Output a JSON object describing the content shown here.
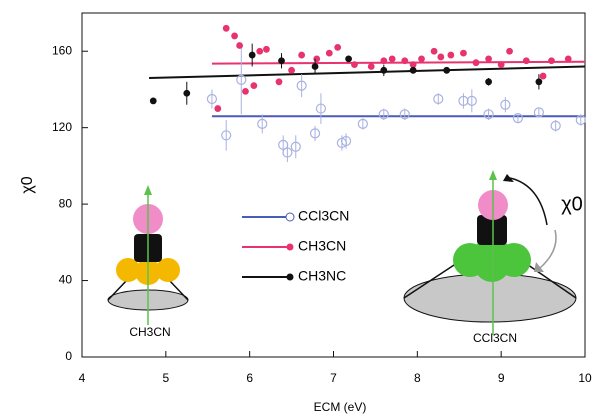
{
  "chart_data": {
    "type": "scatter",
    "xlabel": "ECM (eV)",
    "ylabel": "χ0",
    "xlim": [
      4,
      10
    ],
    "ylim": [
      0,
      180
    ],
    "xticks": [
      4,
      5,
      6,
      7,
      8,
      9,
      10
    ],
    "yticks": [
      0,
      40,
      80,
      120,
      160
    ],
    "series": [
      {
        "name": "CCl3CN",
        "color": "#4a5bb8",
        "marker": "open",
        "x": [
          5.55,
          5.72,
          5.9,
          6.15,
          6.4,
          6.45,
          6.55,
          6.62,
          6.78,
          6.85,
          7.1,
          7.15,
          7.35,
          7.6,
          7.85,
          8.25,
          8.55,
          8.65,
          8.85,
          9.05,
          9.2,
          9.45,
          9.65,
          9.95
        ],
        "values": [
          135,
          116,
          145,
          122,
          111,
          107,
          110,
          142,
          117,
          130,
          112,
          113,
          122,
          127,
          127,
          135,
          134,
          134,
          127,
          132,
          125,
          128,
          121,
          124
        ],
        "errors": [
          5,
          8,
          18,
          5,
          5,
          5,
          6,
          6,
          4,
          8,
          4,
          4,
          3,
          3,
          3,
          3,
          4,
          6,
          3,
          4,
          2,
          2,
          3,
          3
        ]
      },
      {
        "name": "CH3CN",
        "color": "#e8336e",
        "marker": "dot",
        "x": [
          5.62,
          5.72,
          5.82,
          5.88,
          5.95,
          6.05,
          6.12,
          6.2,
          6.35,
          6.5,
          6.62,
          6.8,
          6.95,
          7.05,
          7.25,
          7.45,
          7.6,
          7.7,
          7.85,
          7.95,
          8.05,
          8.2,
          8.28,
          8.4,
          8.55,
          8.7,
          8.85,
          9.0,
          9.1,
          9.3,
          9.5,
          9.6,
          9.8
        ],
        "values": [
          130,
          172,
          168,
          163,
          139,
          142,
          160,
          161,
          144,
          150,
          158,
          156,
          159,
          162,
          153,
          152,
          155,
          156,
          155,
          153,
          156,
          160,
          157,
          158,
          159,
          154,
          156,
          153,
          160,
          155,
          147,
          155,
          156
        ],
        "errors": [
          0,
          0,
          0,
          0,
          0,
          0,
          0,
          0,
          0,
          0,
          0,
          0,
          0,
          0,
          0,
          0,
          0,
          0,
          0,
          0,
          0,
          0,
          0,
          0,
          0,
          0,
          0,
          0,
          0,
          0,
          0,
          0,
          0
        ]
      },
      {
        "name": "CH3NC",
        "color": "#111111",
        "marker": "dot",
        "x": [
          4.85,
          5.25,
          6.03,
          6.38,
          6.78,
          7.18,
          7.6,
          7.95,
          8.35,
          8.85,
          9.45
        ],
        "values": [
          134,
          138,
          158,
          155,
          152,
          156,
          150,
          150,
          150,
          144,
          144
        ],
        "errors": [
          0,
          6,
          6,
          4,
          4,
          0,
          3,
          0,
          0,
          2,
          4
        ]
      }
    ],
    "fits": [
      {
        "color": "#4a5bb8",
        "x": [
          5.55,
          10
        ],
        "values": [
          126,
          126
        ]
      },
      {
        "color": "#e8336e",
        "x": [
          5.55,
          10
        ],
        "values": [
          153.5,
          154.5
        ]
      },
      {
        "color": "#111111",
        "x": [
          4.8,
          10
        ],
        "values": [
          146,
          152
        ]
      }
    ],
    "annotations": [
      "CH3CN",
      "CCl3CN",
      "χ0"
    ]
  }
}
